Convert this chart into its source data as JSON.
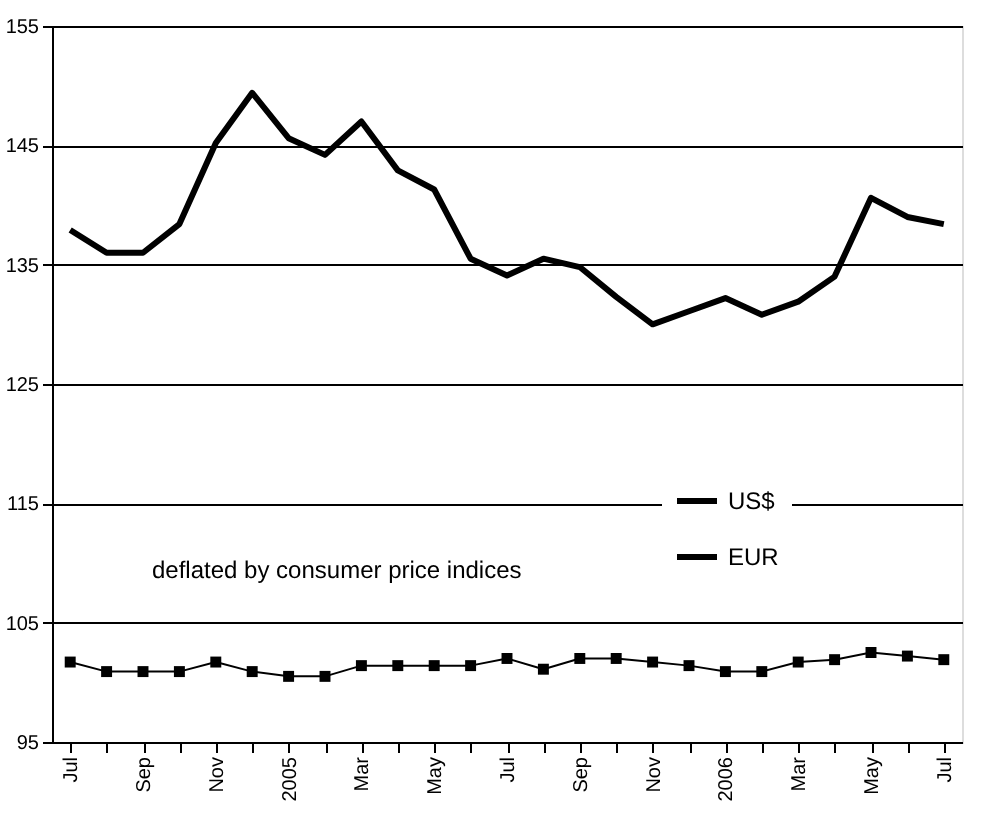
{
  "chart_data": {
    "type": "line",
    "categories": [
      "Jul",
      null,
      "Sep",
      null,
      "Nov",
      null,
      "2005",
      null,
      "Mar",
      null,
      "May",
      null,
      "Jul",
      null,
      "Sep",
      null,
      "Nov",
      null,
      "2006",
      null,
      "Mar",
      null,
      "May",
      null,
      "Jul"
    ],
    "series": [
      {
        "name": "US$",
        "color": "#000000",
        "marker": "none",
        "values": [
          137.9,
          136.0,
          136.0,
          138.4,
          145.2,
          149.4,
          145.6,
          144.2,
          147.0,
          142.9,
          141.3,
          135.5,
          134.1,
          135.5,
          134.8,
          132.3,
          130.0,
          131.1,
          132.2,
          130.8,
          131.9,
          134.0,
          140.6,
          139.0,
          138.4
        ]
      },
      {
        "name": "EUR",
        "color": "#000000",
        "marker": "square",
        "values": [
          101.7,
          100.9,
          100.9,
          100.9,
          101.7,
          100.9,
          100.5,
          100.5,
          101.4,
          101.4,
          101.4,
          101.4,
          102.0,
          101.1,
          102.0,
          102.0,
          101.7,
          101.4,
          100.9,
          100.9,
          101.7,
          101.9,
          102.5,
          102.2,
          101.9
        ]
      }
    ],
    "ylim": [
      95,
      155
    ],
    "yticks": [
      95,
      105,
      115,
      125,
      135,
      145,
      155
    ],
    "grid": "y",
    "legend": "right",
    "annotations": [
      "deflated by consumer price indices"
    ]
  }
}
